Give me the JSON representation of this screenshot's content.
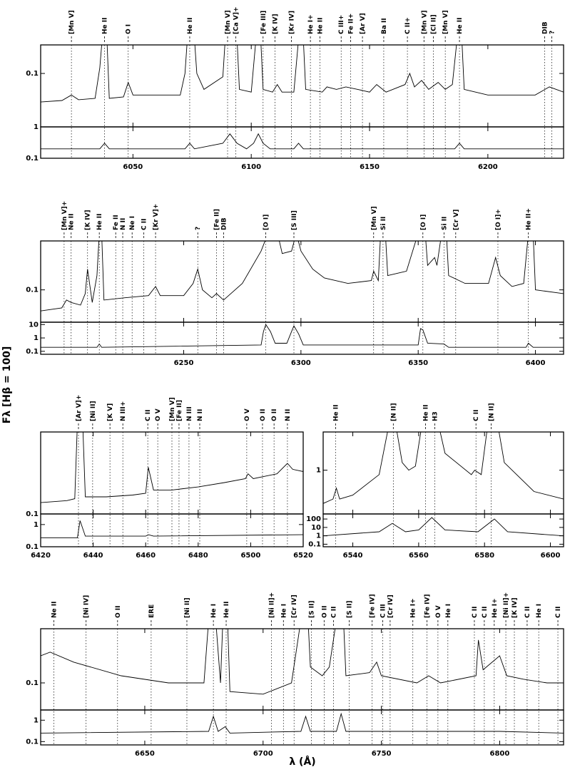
{
  "ylabel": "Fλ [Hβ = 100]",
  "xlabel": "λ (Å)",
  "chart_data": [
    {
      "type": "line",
      "log_scale": true,
      "color": "#000000",
      "xlim": [
        6011,
        6232
      ],
      "xticks": [
        6050,
        6100,
        6150,
        6200
      ],
      "ylim": [
        0.018,
        0.25
      ],
      "yticks": [
        0.1
      ],
      "x": [
        6011,
        6020,
        6024,
        6027,
        6034,
        6036,
        6037,
        6039,
        6040,
        6046,
        6048,
        6050,
        6060,
        6070,
        6072,
        6073,
        6076,
        6077,
        6080,
        6088,
        6089,
        6094,
        6095,
        6100,
        6102,
        6104,
        6105,
        6109,
        6111,
        6113,
        6118,
        6120,
        6122,
        6123,
        6130,
        6132,
        6136,
        6140,
        6145,
        6150,
        6153,
        6157,
        6165,
        6167,
        6169,
        6172,
        6175,
        6179,
        6182,
        6185,
        6187,
        6189,
        6190,
        6200,
        6210,
        6220,
        6226,
        6232
      ],
      "values": [
        0.04,
        0.042,
        0.05,
        0.043,
        0.045,
        0.12,
        0.3,
        0.3,
        0.045,
        0.047,
        0.075,
        0.05,
        0.05,
        0.05,
        0.1,
        0.3,
        0.3,
        0.1,
        0.06,
        0.09,
        0.3,
        0.3,
        0.06,
        0.055,
        0.3,
        0.3,
        0.06,
        0.055,
        0.07,
        0.055,
        0.055,
        0.3,
        0.3,
        0.06,
        0.055,
        0.065,
        0.06,
        0.065,
        0.06,
        0.055,
        0.07,
        0.055,
        0.07,
        0.1,
        0.065,
        0.08,
        0.06,
        0.075,
        0.06,
        0.07,
        0.3,
        0.3,
        0.06,
        0.05,
        0.05,
        0.05,
        0.065,
        0.055
      ],
      "lower": {
        "ylim": [
          0.1,
          1
        ],
        "yticks": [
          0.1,
          1
        ],
        "x": [
          6011,
          6036,
          6038,
          6040,
          6072,
          6074,
          6076,
          6088,
          6091,
          6094,
          6098,
          6101,
          6103,
          6105,
          6108,
          6118,
          6120,
          6122,
          6186,
          6188,
          6190,
          6232
        ],
        "values": [
          0.2,
          0.2,
          0.3,
          0.2,
          0.2,
          0.3,
          0.2,
          0.3,
          0.6,
          0.3,
          0.2,
          0.3,
          0.6,
          0.3,
          0.2,
          0.2,
          0.3,
          0.2,
          0.2,
          0.3,
          0.2,
          0.2
        ]
      },
      "lines": [
        {
          "label": "[Mn V]",
          "x": 6024
        },
        {
          "label": "He II",
          "x": 6038
        },
        {
          "label": "O I",
          "x": 6048
        },
        {
          "label": "He II",
          "x": 6074
        },
        {
          "label": "[Mn V]",
          "x": 6090
        },
        {
          "label": "[Ca V]+",
          "x": 6093.5
        },
        {
          "label": "[Fe III]",
          "x": 6105
        },
        {
          "label": "[K IV]",
          "x": 6110
        },
        {
          "label": "[Kr IV]",
          "x": 6117
        },
        {
          "label": "He I+",
          "x": 6125
        },
        {
          "label": "He II",
          "x": 6129
        },
        {
          "label": "C III+",
          "x": 6138
        },
        {
          "label": "Fe II+",
          "x": 6142
        },
        {
          "label": "[Ar V]",
          "x": 6147
        },
        {
          "label": "Ba II",
          "x": 6156
        },
        {
          "label": "C II+",
          "x": 6166
        },
        {
          "label": "[Mn V]",
          "x": 6173
        },
        {
          "label": "[Cl II]",
          "x": 6177
        },
        {
          "label": "[Mn V]",
          "x": 6182
        },
        {
          "label": "He II",
          "x": 6188
        },
        {
          "label": "DIB",
          "x": 6224
        },
        {
          "label": "?",
          "x": 6227
        }
      ]
    },
    {
      "type": "line",
      "log_scale": true,
      "color": "#000000",
      "xlim": [
        6189,
        6412
      ],
      "xticks": [
        6250,
        6300,
        6350,
        6400
      ],
      "ylim": [
        0.04,
        0.4
      ],
      "yticks": [
        0.1
      ],
      "x": [
        6189,
        6198,
        6200,
        6202,
        6206,
        6208,
        6209,
        6211,
        6213,
        6214,
        6215,
        6216,
        6225,
        6235,
        6238,
        6240,
        6250,
        6254,
        6256,
        6258,
        6262,
        6264,
        6267,
        6275,
        6283,
        6286,
        6290,
        6292,
        6296,
        6298,
        6300,
        6305,
        6310,
        6320,
        6330,
        6331,
        6333,
        6334,
        6336,
        6337,
        6345,
        6350,
        6353,
        6354,
        6357,
        6358,
        6360,
        6362,
        6363,
        6370,
        6380,
        6383,
        6385,
        6390,
        6395,
        6397,
        6399,
        6400,
        6412
      ],
      "values": [
        0.055,
        0.06,
        0.075,
        0.07,
        0.065,
        0.09,
        0.18,
        0.07,
        0.15,
        0.5,
        0.5,
        0.075,
        0.08,
        0.085,
        0.11,
        0.085,
        0.085,
        0.12,
        0.18,
        0.1,
        0.08,
        0.09,
        0.075,
        0.12,
        0.3,
        0.5,
        0.5,
        0.28,
        0.3,
        0.5,
        0.3,
        0.18,
        0.14,
        0.12,
        0.13,
        0.17,
        0.13,
        0.5,
        0.5,
        0.15,
        0.17,
        0.5,
        0.5,
        0.2,
        0.25,
        0.2,
        0.5,
        0.5,
        0.15,
        0.12,
        0.12,
        0.25,
        0.15,
        0.11,
        0.12,
        0.5,
        0.5,
        0.1,
        0.09
      ],
      "lower": {
        "ylim": [
          0.06,
          15
        ],
        "yticks": [
          0.1,
          1,
          10
        ],
        "x": [
          6189,
          6213,
          6214,
          6215,
          6283,
          6284,
          6285,
          6287,
          6289,
          6294,
          6296,
          6297,
          6299,
          6301,
          6350,
          6351,
          6352,
          6354,
          6361,
          6363,
          6396,
          6397,
          6399,
          6412
        ],
        "values": [
          0.2,
          0.2,
          0.35,
          0.2,
          0.3,
          3,
          10,
          3,
          0.4,
          0.4,
          3,
          8,
          2,
          0.3,
          0.3,
          5,
          4,
          0.4,
          0.35,
          0.2,
          0.2,
          0.4,
          0.2,
          0.2
        ]
      },
      "lines": [
        {
          "label": "[Mn V]+",
          "x": 6199
        },
        {
          "label": "Ne II",
          "x": 6202
        },
        {
          "label": "[K IV]",
          "x": 6209
        },
        {
          "label": "He II",
          "x": 6214
        },
        {
          "label": "Fe II",
          "x": 6221
        },
        {
          "label": "N II",
          "x": 6224
        },
        {
          "label": "Ne I",
          "x": 6228
        },
        {
          "label": "C II",
          "x": 6233
        },
        {
          "label": "[Kr V]+",
          "x": 6238
        },
        {
          "label": "?",
          "x": 6256
        },
        {
          "label": "[Fe II]",
          "x": 6264
        },
        {
          "label": "DIB",
          "x": 6267
        },
        {
          "label": "[O I]",
          "x": 6285
        },
        {
          "label": "[S III]",
          "x": 6297
        },
        {
          "label": "[Mn V]",
          "x": 6331
        },
        {
          "label": "Si II",
          "x": 6335
        },
        {
          "label": "[O I]",
          "x": 6352
        },
        {
          "label": "Si II",
          "x": 6361
        },
        {
          "label": "[Cr V]",
          "x": 6366
        },
        {
          "label": "[O I]+",
          "x": 6384
        },
        {
          "label": "He II+",
          "x": 6397
        }
      ]
    },
    {
      "type": "line",
      "log_scale": true,
      "color": "#000000",
      "xlim": [
        6420,
        6520
      ],
      "xticks": [
        6420,
        6440,
        6460,
        6480,
        6500,
        6520
      ],
      "ylim": [
        0.1,
        0.5
      ],
      "yticks": [
        0.1
      ],
      "x": [
        6420,
        6430,
        6433,
        6434,
        6436,
        6437,
        6445,
        6455,
        6460,
        6461,
        6463,
        6470,
        6480,
        6490,
        6498,
        6499,
        6501,
        6510,
        6514,
        6516,
        6520
      ],
      "values": [
        0.125,
        0.13,
        0.135,
        0.6,
        0.6,
        0.14,
        0.14,
        0.145,
        0.15,
        0.25,
        0.16,
        0.16,
        0.17,
        0.185,
        0.2,
        0.22,
        0.2,
        0.22,
        0.27,
        0.24,
        0.23
      ],
      "lower": {
        "ylim": [
          0.1,
          3
        ],
        "yticks": [
          0.1,
          1
        ],
        "x": [
          6420,
          6434,
          6435,
          6437,
          6460,
          6461,
          6463,
          6520
        ],
        "values": [
          0.25,
          0.25,
          1.5,
          0.3,
          0.3,
          0.35,
          0.3,
          0.35
        ]
      },
      "lines": [
        {
          "label": "[Ar V]+",
          "x": 6434.4
        },
        {
          "label": "[Ni II]",
          "x": 6439.8
        },
        {
          "label": "[K V]",
          "x": 6446.4
        },
        {
          "label": "N III+",
          "x": 6451.3
        },
        {
          "label": "C II",
          "x": 6460.8
        },
        {
          "label": "O V",
          "x": 6464.6
        },
        {
          "label": "[Mn V]",
          "x": 6470
        },
        {
          "label": "[Fe II]",
          "x": 6472.7
        },
        {
          "label": "N III",
          "x": 6476.5
        },
        {
          "label": "N II",
          "x": 6480.6
        },
        {
          "label": "O V",
          "x": 6498.5
        },
        {
          "label": "O II",
          "x": 6504.5
        },
        {
          "label": "O II",
          "x": 6508.9
        },
        {
          "label": "N II",
          "x": 6514
        }
      ]
    },
    {
      "type": "line",
      "log_scale": true,
      "color": "#000000",
      "xlim": [
        6531,
        6604
      ],
      "xticks": [
        6540,
        6560,
        6580,
        6600
      ],
      "ylim": [
        0.35,
        2.5
      ],
      "yticks": [
        1
      ],
      "x": [
        6531,
        6534,
        6535,
        6536,
        6540,
        6548,
        6551,
        6553,
        6555,
        6557,
        6559,
        6561,
        6566,
        6568,
        6576,
        6577,
        6579,
        6581,
        6584,
        6586,
        6595,
        6604
      ],
      "values": [
        0.45,
        0.5,
        0.65,
        0.5,
        0.55,
        0.9,
        3,
        3,
        1.2,
        1,
        1.1,
        3,
        3,
        1.5,
        0.9,
        1,
        0.9,
        3,
        3,
        1.2,
        0.6,
        0.5
      ],
      "lower": {
        "ylim": [
          0.05,
          400
        ],
        "yticks": [
          0.1,
          1,
          10,
          100
        ],
        "x": [
          6531,
          6548,
          6552,
          6556,
          6560,
          6564,
          6568,
          6578,
          6583,
          6587,
          6604
        ],
        "values": [
          1,
          3,
          30,
          3,
          5,
          150,
          5,
          3,
          100,
          3,
          1
        ]
      },
      "lines": [
        {
          "label": "He II",
          "x": 6534.8
        },
        {
          "label": "[N II]",
          "x": 6552.3
        },
        {
          "label": "He II",
          "x": 6562.1
        },
        {
          "label": "H3",
          "x": 6564.9
        },
        {
          "label": "C II",
          "x": 6577.4
        },
        {
          "label": "[N II]",
          "x": 6582
        }
      ]
    },
    {
      "type": "line",
      "log_scale": true,
      "color": "#000000",
      "xlim": [
        6606,
        6827
      ],
      "xticks": [
        6650,
        6700,
        6750,
        6800
      ],
      "ylim": [
        0.05,
        0.4
      ],
      "yticks": [
        0.1
      ],
      "x": [
        6606,
        6610,
        6620,
        6640,
        6660,
        6675,
        6677,
        6680,
        6682,
        6683,
        6685,
        6686,
        6700,
        6712,
        6716,
        6719,
        6720,
        6725,
        6728,
        6731,
        6734,
        6735,
        6745,
        6748,
        6750,
        6765,
        6770,
        6775,
        6790,
        6791,
        6793,
        6800,
        6803,
        6810,
        6820,
        6827
      ],
      "values": [
        0.2,
        0.22,
        0.17,
        0.12,
        0.1,
        0.1,
        0.5,
        0.5,
        0.1,
        0.5,
        0.5,
        0.08,
        0.075,
        0.1,
        0.5,
        0.5,
        0.15,
        0.12,
        0.15,
        0.5,
        0.5,
        0.12,
        0.13,
        0.17,
        0.12,
        0.1,
        0.12,
        0.1,
        0.12,
        0.3,
        0.14,
        0.2,
        0.12,
        0.11,
        0.1,
        0.1
      ],
      "lower": {
        "ylim": [
          0.07,
          3
        ],
        "yticks": [
          0.1,
          1
        ],
        "x": [
          6606,
          6677,
          6679,
          6681,
          6684,
          6686,
          6716,
          6718,
          6720,
          6731,
          6733,
          6735,
          6800,
          6827
        ],
        "values": [
          0.25,
          0.3,
          1.5,
          0.3,
          0.5,
          0.25,
          0.3,
          1.5,
          0.3,
          0.3,
          2,
          0.3,
          0.3,
          0.25
        ]
      },
      "lines": [
        {
          "label": "Ne II",
          "x": 6611.6
        },
        {
          "label": "[Ni IV]",
          "x": 6625.2
        },
        {
          "label": "O II",
          "x": 6638.5
        },
        {
          "label": "ERE",
          "x": 6652.7
        },
        {
          "label": "[Ni II]",
          "x": 6667.8
        },
        {
          "label": "He I",
          "x": 6679
        },
        {
          "label": "He II",
          "x": 6684.4
        },
        {
          "label": "[Ni II]+",
          "x": 6703.5
        },
        {
          "label": "He I",
          "x": 6708.6
        },
        {
          "label": "[Cr IV]",
          "x": 6713.1
        },
        {
          "label": "[S II]",
          "x": 6720.4
        },
        {
          "label": "O II",
          "x": 6725.8
        },
        {
          "label": "C II",
          "x": 6729.8
        },
        {
          "label": "[S II]",
          "x": 6736.4
        },
        {
          "label": "[Fe IV]",
          "x": 6746.1
        },
        {
          "label": "C III",
          "x": 6750.6
        },
        {
          "label": "[Cr IV]",
          "x": 6753.7
        },
        {
          "label": "He I+",
          "x": 6763.3
        },
        {
          "label": "[Fe IV]",
          "x": 6769.3
        },
        {
          "label": "O V",
          "x": 6773.9
        },
        {
          "label": "He I",
          "x": 6778.1
        },
        {
          "label": "C II",
          "x": 6789.3
        },
        {
          "label": "C II",
          "x": 6793.5
        },
        {
          "label": "He I+",
          "x": 6797.7
        },
        {
          "label": "[Ni II]+",
          "x": 6802.6
        },
        {
          "label": "[K IV]",
          "x": 6806.2
        },
        {
          "label": "C II",
          "x": 6811.6
        },
        {
          "label": "He I",
          "x": 6816.5
        },
        {
          "label": "C II",
          "x": 6824.6
        }
      ]
    }
  ]
}
